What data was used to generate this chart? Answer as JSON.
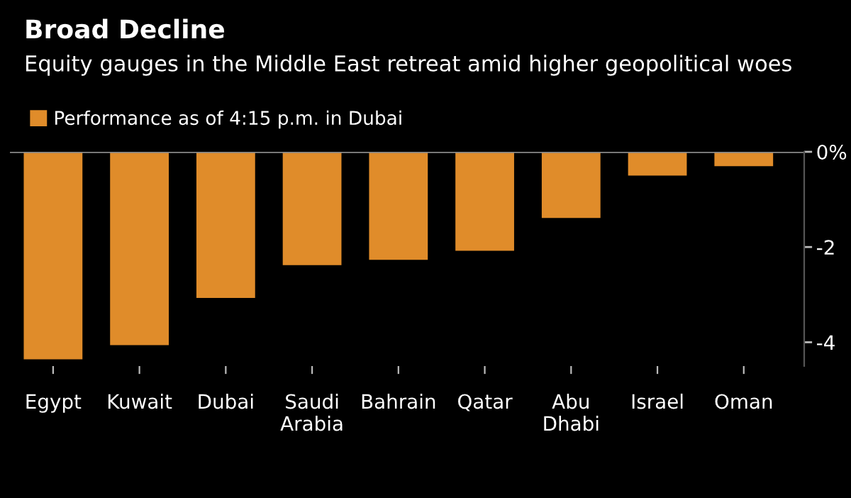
{
  "chart_data": {
    "type": "bar",
    "title": "Broad Decline",
    "subtitle": "Equity gauges in the Middle East retreat amid higher geopolitical woes",
    "categories": [
      "Egypt",
      "Kuwait",
      "Dubai",
      "Saudi\nArabia",
      "Bahrain",
      "Qatar",
      "Abu\nDhabi",
      "Israel",
      "Oman"
    ],
    "series": [
      {
        "name": "Performance as of 4:15 p.m. in Dubai",
        "color": "#e08c2a",
        "values": [
          -4.36,
          -4.06,
          -3.07,
          -2.38,
          -2.27,
          -2.08,
          -1.39,
          -0.5,
          -0.3
        ]
      }
    ],
    "ylim": [
      -4.5,
      0
    ],
    "yticks": [
      {
        "value": 0,
        "label": "0%"
      },
      {
        "value": -2,
        "label": "-2"
      },
      {
        "value": -4,
        "label": "-4"
      }
    ],
    "ref_lines": [
      {
        "axis": "y",
        "value": 0,
        "color": "#888888"
      }
    ],
    "grid": false,
    "legend": "top left"
  }
}
